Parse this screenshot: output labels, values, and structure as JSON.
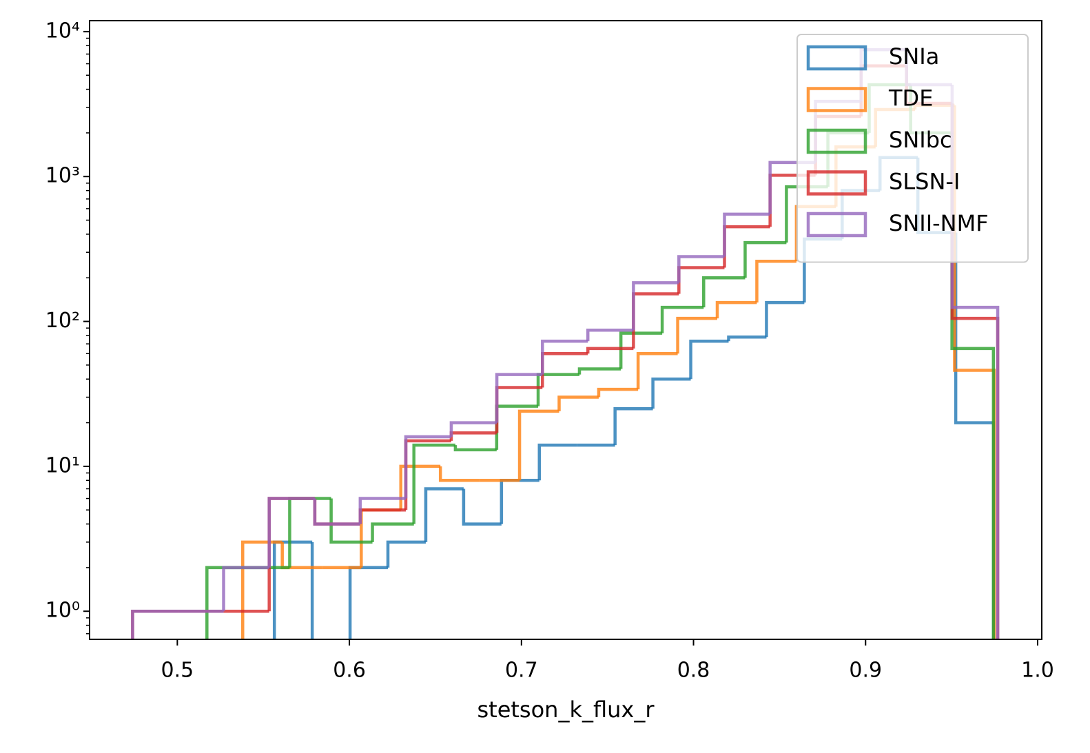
{
  "chart_data": {
    "type": "histogram",
    "x_label": "stetson_k_flux_r",
    "xlim": [
      0.449,
      1.0024
    ],
    "ylim": [
      0.64,
      11900
    ],
    "y_scale": "log",
    "minor_ticks": true,
    "xticks": [
      0.5,
      0.6,
      0.7,
      0.8,
      0.9,
      {
        "value": 1,
        "label": "1.0"
      }
    ],
    "yticks": [
      {
        "value": 1,
        "label": "10⁰"
      },
      {
        "value": 10,
        "label": "10¹"
      },
      {
        "value": 100,
        "label": "10²"
      },
      {
        "value": 1000,
        "label": "10³"
      },
      {
        "value": 10000,
        "label": "10⁴"
      }
    ],
    "legend_position": "upper right",
    "series": [
      {
        "name": "SNIa",
        "color": "#1f77b4",
        "bins": [
          0.5564,
          0.5784,
          0.6004,
          0.6224,
          0.6444,
          0.6664,
          0.6884,
          0.7104,
          0.7324,
          0.7544,
          0.7764,
          0.7984,
          0.8204,
          0.8424,
          0.8644,
          0.8864,
          0.9084,
          0.9304,
          0.9524,
          0.9744
        ],
        "values": [
          3,
          0,
          2,
          3,
          7,
          4,
          8,
          14,
          14,
          25,
          40,
          73,
          78,
          135,
          370,
          800,
          1350,
          410,
          20
        ]
      },
      {
        "name": "TDE",
        "color": "#ff7f0e",
        "bins": [
          0.538,
          0.561,
          0.584,
          0.6069,
          0.6299,
          0.6529,
          0.6759,
          0.6989,
          0.7219,
          0.7449,
          0.7678,
          0.7908,
          0.8138,
          0.8368,
          0.8598,
          0.8828,
          0.9058,
          0.9287,
          0.9517,
          0.9747
        ],
        "values": [
          3,
          2,
          2,
          5,
          10,
          8,
          8,
          24,
          30,
          34,
          60,
          105,
          135,
          260,
          620,
          1600,
          2900,
          3100,
          46
        ]
      },
      {
        "name": "SNIbc",
        "color": "#2ca02c",
        "bins": [
          0.5172,
          0.5413,
          0.5653,
          0.5894,
          0.6134,
          0.6375,
          0.6616,
          0.6856,
          0.7097,
          0.7337,
          0.7578,
          0.7818,
          0.8059,
          0.83,
          0.854,
          0.8781,
          0.9021,
          0.9262,
          0.9502,
          0.9743
        ],
        "values": [
          2,
          2,
          6,
          3,
          4,
          14,
          13,
          26,
          43,
          47,
          83,
          125,
          200,
          350,
          850,
          2000,
          4300,
          2000,
          65
        ]
      },
      {
        "name": "SLSN-I",
        "color": "#d62728",
        "bins": [
          0.474,
          0.5005,
          0.5269,
          0.5534,
          0.5799,
          0.6063,
          0.6328,
          0.6592,
          0.6857,
          0.7122,
          0.7386,
          0.7651,
          0.7915,
          0.818,
          0.8445,
          0.8709,
          0.8974,
          0.9238,
          0.9503,
          0.9768
        ],
        "values": [
          1,
          1,
          1,
          6,
          4,
          5,
          15,
          17,
          35,
          60,
          65,
          155,
          235,
          450,
          1020,
          2600,
          5800,
          3200,
          105
        ]
      },
      {
        "name": "SNII-NMF",
        "color": "#9467bd",
        "bins": [
          0.474,
          0.5005,
          0.5269,
          0.5534,
          0.5799,
          0.6063,
          0.6328,
          0.6592,
          0.6857,
          0.7122,
          0.7386,
          0.7651,
          0.7915,
          0.818,
          0.8445,
          0.8709,
          0.8974,
          0.9238,
          0.9503,
          0.9768
        ],
        "values": [
          1,
          1,
          2,
          6,
          4,
          6,
          16,
          20,
          43,
          73,
          87,
          185,
          280,
          550,
          1250,
          3300,
          7500,
          4300,
          125
        ]
      }
    ]
  }
}
